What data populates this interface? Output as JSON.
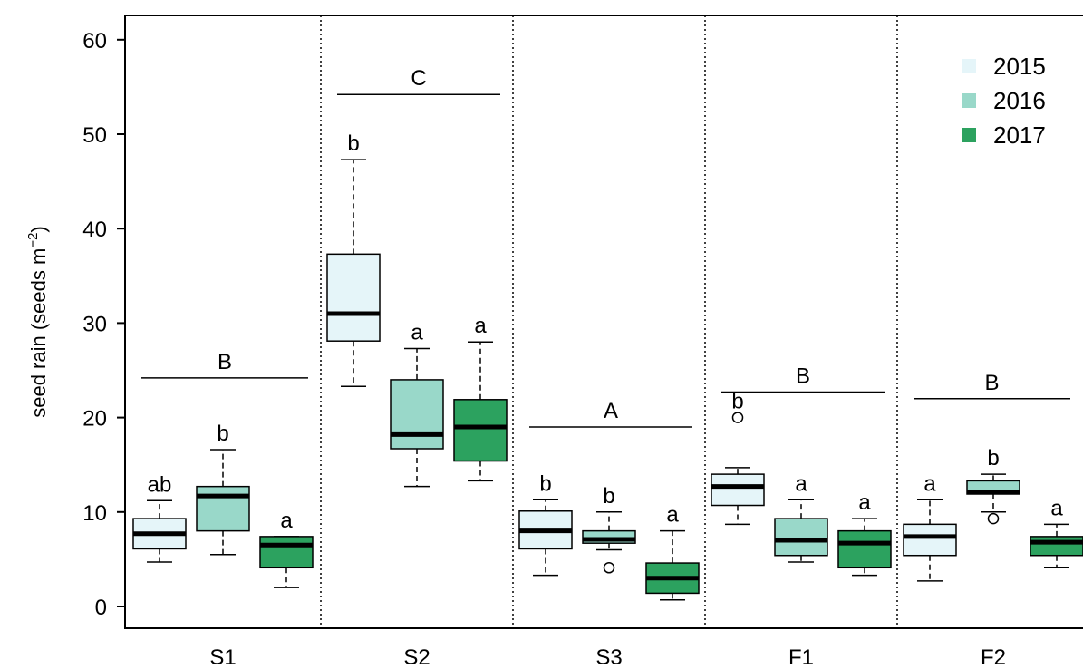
{
  "chart_data": {
    "type": "box",
    "ylabel": "seed rain (seeds m",
    "ylabel_sup": "−2",
    "ylabel_close": ")",
    "ylim": [
      -2,
      62
    ],
    "yticks": [
      0,
      10,
      20,
      30,
      40,
      50,
      60
    ],
    "categories": [
      "S1",
      "S2",
      "S3",
      "F1",
      "F2"
    ],
    "series_names": [
      "2015",
      "2016",
      "2017"
    ],
    "colors": [
      "#e5f5f9",
      "#99d8c9",
      "#2ca25f"
    ],
    "legend_position": "top-right",
    "grid": false,
    "group_letters": [
      {
        "category": "S1",
        "letter": "B",
        "y": 24.2
      },
      {
        "category": "S2",
        "letter": "C",
        "y": 54.2
      },
      {
        "category": "S3",
        "letter": "A",
        "y": 19.0
      },
      {
        "category": "F1",
        "letter": "B",
        "y": 22.7
      },
      {
        "category": "F2",
        "letter": "B",
        "y": 22.0
      }
    ],
    "boxes": [
      {
        "category": "S1",
        "series": "2015",
        "whisker_low": 4.7,
        "q1": 6.1,
        "median": 7.7,
        "q3": 9.3,
        "whisker_high": 11.2,
        "outliers": [],
        "letter": "ab"
      },
      {
        "category": "S1",
        "series": "2016",
        "whisker_low": 5.5,
        "q1": 8.0,
        "median": 11.7,
        "q3": 12.7,
        "whisker_high": 16.6,
        "outliers": [],
        "letter": "b"
      },
      {
        "category": "S1",
        "series": "2017",
        "whisker_low": 2.0,
        "q1": 4.1,
        "median": 6.5,
        "q3": 7.4,
        "whisker_high": 7.4,
        "outliers": [],
        "letter": "a"
      },
      {
        "category": "S2",
        "series": "2015",
        "whisker_low": 23.3,
        "q1": 28.1,
        "median": 31.0,
        "q3": 37.3,
        "whisker_high": 47.3,
        "outliers": [],
        "letter": "b"
      },
      {
        "category": "S2",
        "series": "2016",
        "whisker_low": 12.7,
        "q1": 16.7,
        "median": 18.2,
        "q3": 24.0,
        "whisker_high": 27.3,
        "outliers": [],
        "letter": "a"
      },
      {
        "category": "S2",
        "series": "2017",
        "whisker_low": 13.3,
        "q1": 15.4,
        "median": 19.0,
        "q3": 21.9,
        "whisker_high": 28.0,
        "outliers": [],
        "letter": "a"
      },
      {
        "category": "S3",
        "series": "2015",
        "whisker_low": 3.3,
        "q1": 6.1,
        "median": 8.0,
        "q3": 10.1,
        "whisker_high": 11.3,
        "outliers": [],
        "letter": "b"
      },
      {
        "category": "S3",
        "series": "2016",
        "whisker_low": 6.0,
        "q1": 6.7,
        "median": 7.1,
        "q3": 8.0,
        "whisker_high": 10.0,
        "outliers": [
          4.1
        ],
        "letter": "b"
      },
      {
        "category": "S3",
        "series": "2017",
        "whisker_low": 0.7,
        "q1": 1.4,
        "median": 3.0,
        "q3": 4.6,
        "whisker_high": 8.0,
        "outliers": [],
        "letter": "a"
      },
      {
        "category": "F1",
        "series": "2015",
        "whisker_low": 8.7,
        "q1": 10.7,
        "median": 12.7,
        "q3": 14.0,
        "whisker_high": 14.7,
        "outliers": [
          20.0
        ],
        "letter": "b"
      },
      {
        "category": "F1",
        "series": "2016",
        "whisker_low": 4.7,
        "q1": 5.4,
        "median": 7.0,
        "q3": 9.3,
        "whisker_high": 11.3,
        "outliers": [],
        "letter": "a"
      },
      {
        "category": "F1",
        "series": "2017",
        "whisker_low": 3.3,
        "q1": 4.1,
        "median": 6.7,
        "q3": 8.0,
        "whisker_high": 9.3,
        "outliers": [],
        "letter": "a"
      },
      {
        "category": "F2",
        "series": "2015",
        "whisker_low": 2.7,
        "q1": 5.4,
        "median": 7.4,
        "q3": 8.7,
        "whisker_high": 11.3,
        "outliers": [],
        "letter": "a"
      },
      {
        "category": "F2",
        "series": "2016",
        "whisker_low": 10.0,
        "q1": 11.9,
        "median": 12.1,
        "q3": 13.3,
        "whisker_high": 14.0,
        "outliers": [
          9.3
        ],
        "letter": "b"
      },
      {
        "category": "F2",
        "series": "2017",
        "whisker_low": 4.1,
        "q1": 5.4,
        "median": 6.8,
        "q3": 7.4,
        "whisker_high": 8.7,
        "outliers": [],
        "letter": "a"
      }
    ]
  }
}
